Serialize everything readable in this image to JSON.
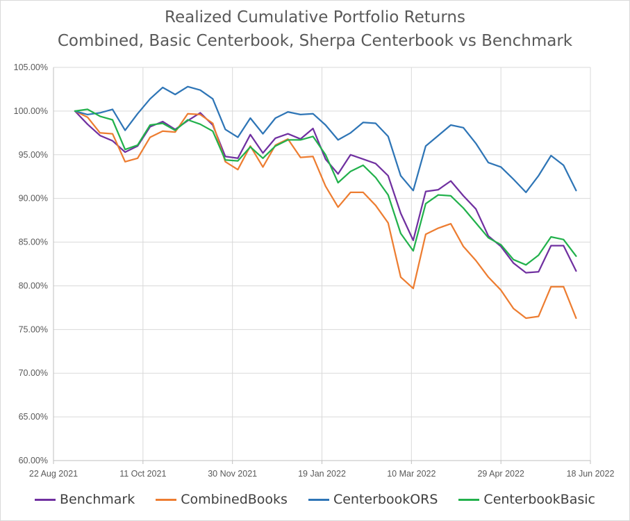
{
  "chart_data": {
    "type": "line",
    "title": "Realized Cumulative Portfolio Returns",
    "subtitle": "Combined, Basic Centerbook, Sherpa Centerbook vs Benchmark",
    "xlabel": "",
    "ylabel": "",
    "x_ticks": [
      "22 Aug 2021",
      "11 Oct 2021",
      "30 Nov 2021",
      "19 Jan 2022",
      "10 Mar 2022",
      "29 Apr 2022",
      "18 Jun 2022"
    ],
    "y_ticks": [
      "60.00%",
      "65.00%",
      "70.00%",
      "75.00%",
      "80.00%",
      "85.00%",
      "90.00%",
      "95.00%",
      "100.00%",
      "105.00%"
    ],
    "ylim": [
      60,
      105
    ],
    "xlim": [
      "2021-08-22",
      "2022-06-18"
    ],
    "grid": true,
    "legend_position": "bottom",
    "x": [
      "2021-09-03",
      "2021-09-10",
      "2021-09-17",
      "2021-09-24",
      "2021-10-01",
      "2021-10-08",
      "2021-10-15",
      "2021-10-22",
      "2021-10-29",
      "2021-11-05",
      "2021-11-12",
      "2021-11-19",
      "2021-11-26",
      "2021-12-03",
      "2021-12-10",
      "2021-12-17",
      "2021-12-24",
      "2021-12-31",
      "2022-01-07",
      "2022-01-14",
      "2022-01-21",
      "2022-01-28",
      "2022-02-04",
      "2022-02-11",
      "2022-02-18",
      "2022-02-25",
      "2022-03-04",
      "2022-03-11",
      "2022-03-18",
      "2022-03-25",
      "2022-04-01",
      "2022-04-08",
      "2022-04-15",
      "2022-04-22",
      "2022-04-29",
      "2022-05-06",
      "2022-05-13",
      "2022-05-20",
      "2022-05-27",
      "2022-06-03",
      "2022-06-10"
    ],
    "series": [
      {
        "name": "Benchmark",
        "color": "#7030a0",
        "values": [
          100.0,
          98.5,
          97.2,
          96.6,
          95.3,
          96.0,
          98.2,
          98.8,
          97.9,
          98.9,
          99.8,
          98.4,
          94.8,
          94.6,
          97.3,
          95.2,
          96.9,
          97.4,
          96.8,
          98.0,
          94.5,
          92.8,
          95.0,
          94.5,
          94.0,
          92.6,
          88.3,
          85.2,
          90.8,
          91.0,
          92.0,
          90.3,
          88.8,
          85.7,
          84.5,
          82.6,
          81.5,
          81.6,
          84.6,
          84.6,
          81.7
        ]
      },
      {
        "name": "CombinedBooks",
        "color": "#ed7d31",
        "values": [
          100.0,
          99.3,
          97.5,
          97.4,
          94.2,
          94.6,
          97.0,
          97.7,
          97.6,
          99.7,
          99.6,
          98.6,
          94.2,
          93.3,
          96.0,
          93.6,
          96.1,
          96.8,
          94.7,
          94.8,
          91.4,
          89.0,
          90.7,
          90.7,
          89.2,
          87.2,
          81.0,
          79.7,
          85.9,
          86.6,
          87.1,
          84.5,
          82.9,
          81.0,
          79.5,
          77.4,
          76.3,
          76.5,
          79.9,
          79.9,
          76.3
        ]
      },
      {
        "name": "CenterbookORS",
        "color": "#2e75b6",
        "values": [
          100.0,
          99.6,
          99.8,
          100.2,
          97.8,
          99.7,
          101.4,
          102.7,
          101.9,
          102.8,
          102.4,
          101.4,
          97.9,
          97.0,
          99.2,
          97.4,
          99.2,
          99.9,
          99.6,
          99.7,
          98.4,
          96.7,
          97.5,
          98.7,
          98.6,
          97.1,
          92.6,
          90.9,
          96.0,
          97.2,
          98.4,
          98.1,
          96.3,
          94.1,
          93.6,
          92.2,
          90.7,
          92.6,
          94.9,
          93.8,
          90.9
        ]
      },
      {
        "name": "CenterbookBasic",
        "color": "#22b14c",
        "values": [
          100.0,
          100.2,
          99.4,
          99.0,
          95.6,
          96.1,
          98.4,
          98.6,
          97.8,
          99.0,
          98.5,
          97.7,
          94.4,
          94.3,
          95.9,
          94.6,
          96.0,
          96.7,
          96.7,
          97.1,
          95.0,
          91.8,
          93.1,
          93.8,
          92.4,
          90.4,
          86.0,
          84.0,
          89.4,
          90.4,
          90.3,
          88.9,
          87.2,
          85.5,
          84.7,
          83.0,
          82.4,
          83.5,
          85.6,
          85.3,
          83.4
        ]
      }
    ]
  }
}
